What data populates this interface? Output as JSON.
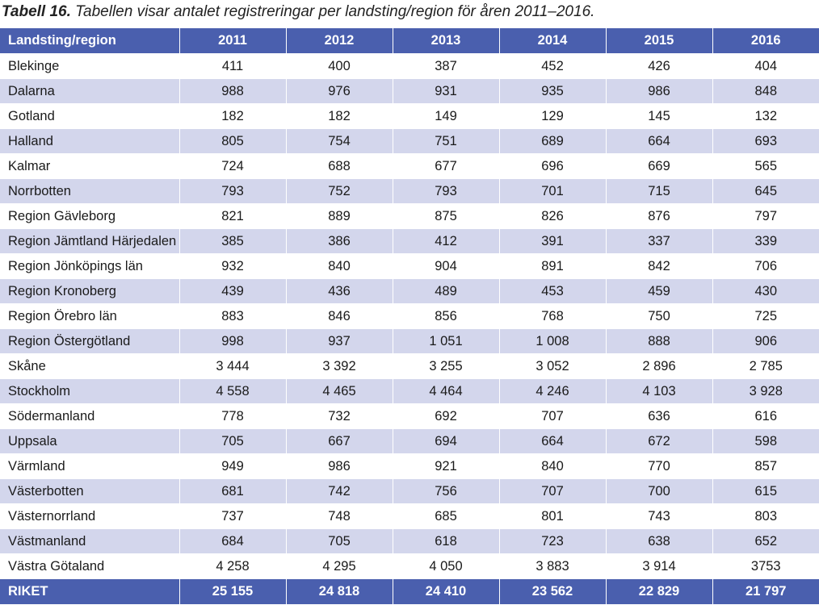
{
  "caption": {
    "label": "Tabell 16.",
    "text": " Tabellen visar antalet registreringar per landsting/region för åren 2011–2016."
  },
  "table": {
    "headers": [
      "Landsting/region",
      "2011",
      "2012",
      "2013",
      "2014",
      "2015",
      "2016"
    ],
    "rows": [
      [
        "Blekinge",
        "411",
        "400",
        "387",
        "452",
        "426",
        "404"
      ],
      [
        "Dalarna",
        "988",
        "976",
        "931",
        "935",
        "986",
        "848"
      ],
      [
        "Gotland",
        "182",
        "182",
        "149",
        "129",
        "145",
        "132"
      ],
      [
        "Halland",
        "805",
        "754",
        "751",
        "689",
        "664",
        "693"
      ],
      [
        "Kalmar",
        "724",
        "688",
        "677",
        "696",
        "669",
        "565"
      ],
      [
        "Norrbotten",
        "793",
        "752",
        "793",
        "701",
        "715",
        "645"
      ],
      [
        "Region Gävleborg",
        "821",
        "889",
        "875",
        "826",
        "876",
        "797"
      ],
      [
        "Region Jämtland Härjedalen",
        "385",
        "386",
        "412",
        "391",
        "337",
        "339"
      ],
      [
        "Region Jönköpings län",
        "932",
        "840",
        "904",
        "891",
        "842",
        "706"
      ],
      [
        "Region Kronoberg",
        "439",
        "436",
        "489",
        "453",
        "459",
        "430"
      ],
      [
        "Region Örebro län",
        "883",
        "846",
        "856",
        "768",
        "750",
        "725"
      ],
      [
        "Region Östergötland",
        "998",
        "937",
        "1 051",
        "1 008",
        "888",
        "906"
      ],
      [
        "Skåne",
        "3 444",
        "3 392",
        "3 255",
        "3 052",
        "2 896",
        "2 785"
      ],
      [
        "Stockholm",
        "4 558",
        "4 465",
        "4 464",
        "4 246",
        "4 103",
        "3 928"
      ],
      [
        "Södermanland",
        "778",
        "732",
        "692",
        "707",
        "636",
        "616"
      ],
      [
        "Uppsala",
        "705",
        "667",
        "694",
        "664",
        "672",
        "598"
      ],
      [
        "Värmland",
        "949",
        "986",
        "921",
        "840",
        "770",
        "857"
      ],
      [
        "Västerbotten",
        "681",
        "742",
        "756",
        "707",
        "700",
        "615"
      ],
      [
        "Västernorrland",
        "737",
        "748",
        "685",
        "801",
        "743",
        "803"
      ],
      [
        "Västmanland",
        "684",
        "705",
        "618",
        "723",
        "638",
        "652"
      ],
      [
        "Västra Götaland",
        "4 258",
        "4 295",
        "4 050",
        "3 883",
        "3 914",
        "3753"
      ]
    ],
    "total": [
      "RIKET",
      "25 155",
      "24 818",
      "24 410",
      "23 562",
      "22 829",
      "21 797"
    ]
  }
}
